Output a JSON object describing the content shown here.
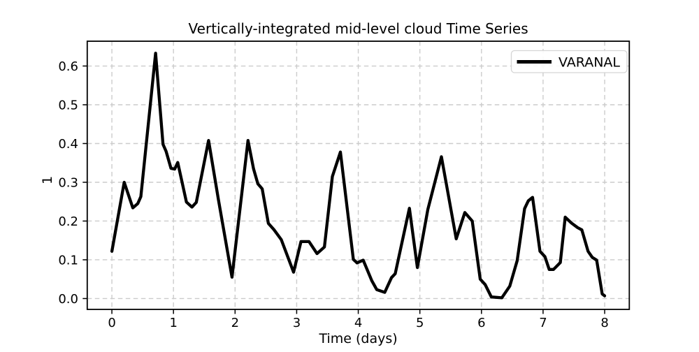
{
  "chart_data": {
    "type": "line",
    "title": "Vertically-integrated mid-level cloud Time Series",
    "xlabel": "Time (days)",
    "ylabel": "1",
    "xlim": [
      -0.4,
      8.4
    ],
    "ylim": [
      -0.028,
      0.664
    ],
    "x_ticks": [
      0,
      1,
      2,
      3,
      4,
      5,
      6,
      7,
      8
    ],
    "x_tick_labels": [
      "0",
      "1",
      "2",
      "3",
      "4",
      "5",
      "6",
      "7",
      "8"
    ],
    "y_ticks": [
      0.0,
      0.1,
      0.2,
      0.3,
      0.4,
      0.5,
      0.6
    ],
    "y_tick_labels": [
      "0.0",
      "0.1",
      "0.2",
      "0.3",
      "0.4",
      "0.5",
      "0.6"
    ],
    "grid": true,
    "grid_style": "dashed",
    "legend_position": "upper right",
    "series": [
      {
        "name": "VARANAL",
        "color": "#000000",
        "linewidth": 4.3,
        "points": [
          [
            0.0,
            0.122
          ],
          [
            0.2,
            0.3
          ],
          [
            0.34,
            0.234
          ],
          [
            0.42,
            0.245
          ],
          [
            0.47,
            0.263
          ],
          [
            0.71,
            0.633
          ],
          [
            0.83,
            0.398
          ],
          [
            0.88,
            0.38
          ],
          [
            0.96,
            0.336
          ],
          [
            1.02,
            0.334
          ],
          [
            1.07,
            0.351
          ],
          [
            1.21,
            0.249
          ],
          [
            1.3,
            0.236
          ],
          [
            1.37,
            0.248
          ],
          [
            1.57,
            0.408
          ],
          [
            1.73,
            0.255
          ],
          [
            1.95,
            0.055
          ],
          [
            2.21,
            0.408
          ],
          [
            2.3,
            0.335
          ],
          [
            2.37,
            0.296
          ],
          [
            2.44,
            0.283
          ],
          [
            2.54,
            0.194
          ],
          [
            2.63,
            0.178
          ],
          [
            2.75,
            0.152
          ],
          [
            2.95,
            0.068
          ],
          [
            3.07,
            0.147
          ],
          [
            3.2,
            0.147
          ],
          [
            3.33,
            0.116
          ],
          [
            3.45,
            0.133
          ],
          [
            3.58,
            0.315
          ],
          [
            3.71,
            0.378
          ],
          [
            3.92,
            0.101
          ],
          [
            3.98,
            0.092
          ],
          [
            4.08,
            0.099
          ],
          [
            4.22,
            0.046
          ],
          [
            4.3,
            0.023
          ],
          [
            4.43,
            0.016
          ],
          [
            4.54,
            0.054
          ],
          [
            4.6,
            0.064
          ],
          [
            4.83,
            0.233
          ],
          [
            4.96,
            0.08
          ],
          [
            5.13,
            0.23
          ],
          [
            5.35,
            0.366
          ],
          [
            5.59,
            0.154
          ],
          [
            5.73,
            0.222
          ],
          [
            5.85,
            0.2
          ],
          [
            5.98,
            0.05
          ],
          [
            6.06,
            0.036
          ],
          [
            6.16,
            0.004
          ],
          [
            6.33,
            0.002
          ],
          [
            6.46,
            0.032
          ],
          [
            6.58,
            0.098
          ],
          [
            6.7,
            0.232
          ],
          [
            6.76,
            0.252
          ],
          [
            6.83,
            0.261
          ],
          [
            6.95,
            0.122
          ],
          [
            7.03,
            0.108
          ],
          [
            7.1,
            0.075
          ],
          [
            7.17,
            0.075
          ],
          [
            7.28,
            0.093
          ],
          [
            7.36,
            0.21
          ],
          [
            7.46,
            0.195
          ],
          [
            7.56,
            0.183
          ],
          [
            7.63,
            0.177
          ],
          [
            7.73,
            0.122
          ],
          [
            7.8,
            0.106
          ],
          [
            7.87,
            0.099
          ],
          [
            7.96,
            0.012
          ],
          [
            8.0,
            0.007
          ]
        ]
      }
    ]
  },
  "colors": {
    "background": "#ffffff",
    "line": "#000000",
    "grid": "#cccccc",
    "spine": "#000000",
    "legend_border": "#d5d5d5",
    "legend_fill": "#ffffff",
    "text": "#000000"
  }
}
